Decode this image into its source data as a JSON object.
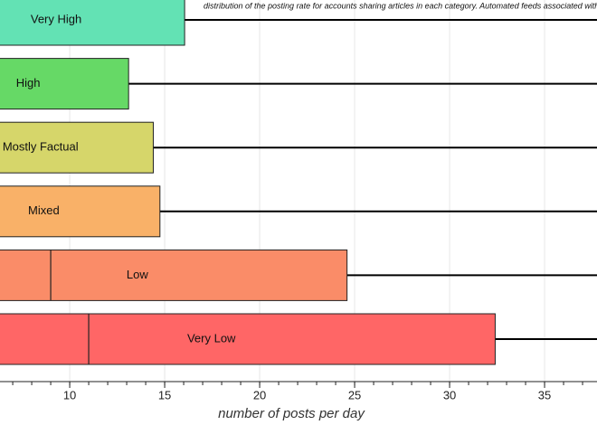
{
  "chart_data": {
    "type": "box",
    "caption": "distribution of the posting rate for accounts sharing articles in each category. Automated feeds associated with news si",
    "xlabel": "number of posts per day",
    "categories": [
      "Very High",
      "High",
      "Mostly Factual",
      "Mixed",
      "Low",
      "Very Low"
    ],
    "colors": [
      "#63e2b4",
      "#66d966",
      "#d6d66a",
      "#f9b168",
      "#fa8c68",
      "#ff6666"
    ],
    "median": [
      null,
      null,
      null,
      null,
      9.0,
      11.0
    ],
    "q3": [
      16.05,
      13.1,
      14.4,
      14.75,
      24.6,
      32.4
    ],
    "xlim": [
      6.33,
      37.76
    ],
    "xticks": [
      10,
      15,
      20,
      25,
      30,
      35
    ],
    "grid": true,
    "minor_ticks": true
  }
}
